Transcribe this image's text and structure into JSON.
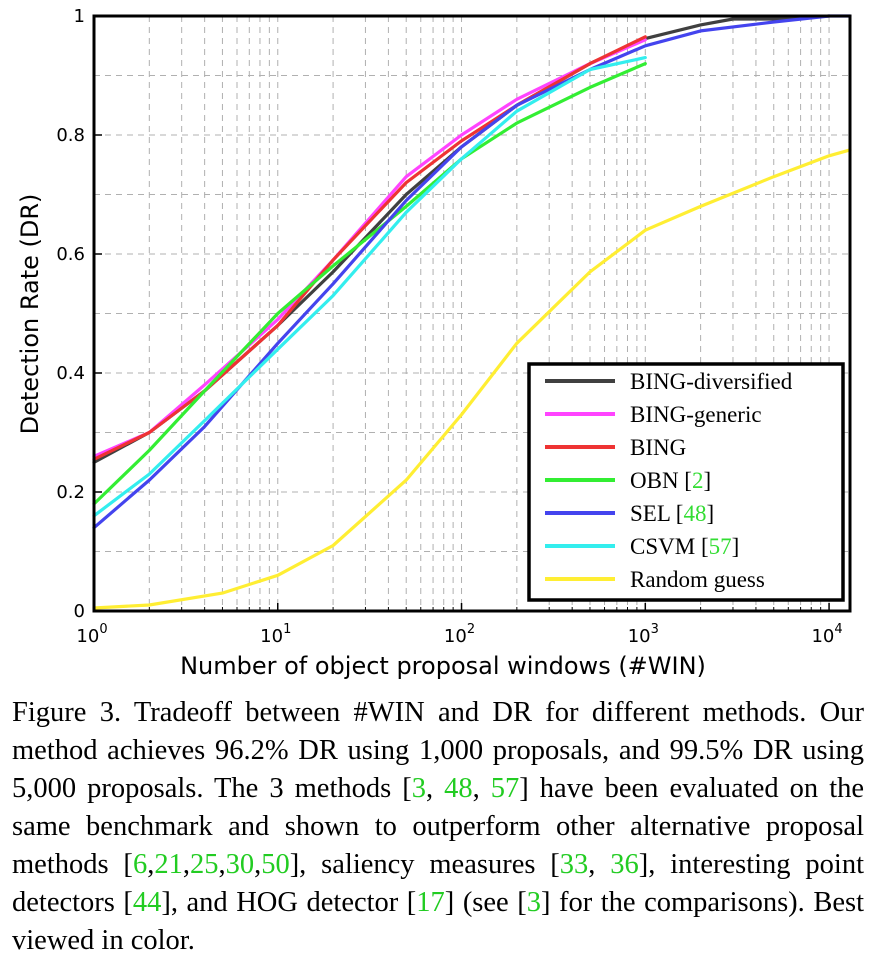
{
  "chart_data": {
    "type": "line",
    "title": "",
    "xlabel": "Number of object proposal windows (#WIN)",
    "ylabel": "Detection Rate (DR)",
    "xscale": "log",
    "xlim": [
      1,
      13000
    ],
    "ylim": [
      0,
      1
    ],
    "grid": true,
    "legend_position": "bottom-right",
    "x_tick_labels": [
      {
        "base": "10",
        "exp": "0"
      },
      {
        "base": "10",
        "exp": "1"
      },
      {
        "base": "10",
        "exp": "2"
      },
      {
        "base": "10",
        "exp": "3"
      },
      {
        "base": "10",
        "exp": "4"
      }
    ],
    "y_tick_labels": [
      "0",
      "0.2",
      "0.4",
      "0.6",
      "0.8",
      "1"
    ],
    "series": [
      {
        "name": "BING-diversified",
        "ref": "",
        "color": "#404040",
        "x": [
          1,
          2,
          4,
          10,
          20,
          50,
          100,
          200,
          500,
          1000,
          2000,
          3000,
          5000,
          10000
        ],
        "y": [
          0.25,
          0.3,
          0.37,
          0.48,
          0.57,
          0.7,
          0.78,
          0.85,
          0.92,
          0.962,
          0.985,
          0.995,
          0.995,
          1.0
        ]
      },
      {
        "name": "BING-generic",
        "ref": "",
        "color": "#ff44ff",
        "x": [
          1,
          2,
          4,
          10,
          20,
          50,
          100,
          200,
          500,
          1000
        ],
        "y": [
          0.26,
          0.3,
          0.38,
          0.49,
          0.59,
          0.73,
          0.8,
          0.86,
          0.92,
          0.96
        ]
      },
      {
        "name": "BING",
        "ref": "",
        "color": "#ee3333",
        "x": [
          1,
          2,
          4,
          10,
          20,
          50,
          100,
          200,
          500,
          1000
        ],
        "y": [
          0.255,
          0.3,
          0.37,
          0.48,
          0.59,
          0.72,
          0.79,
          0.85,
          0.92,
          0.965
        ]
      },
      {
        "name": "OBN",
        "ref": "2",
        "color": "#33ee33",
        "x": [
          1,
          2,
          4,
          10,
          20,
          50,
          100,
          200,
          500,
          1000
        ],
        "y": [
          0.18,
          0.27,
          0.37,
          0.5,
          0.58,
          0.68,
          0.76,
          0.82,
          0.88,
          0.92
        ]
      },
      {
        "name": "SEL",
        "ref": "48",
        "color": "#4444ee",
        "x": [
          1,
          2,
          4,
          10,
          20,
          50,
          100,
          200,
          500,
          1000,
          2000,
          5000,
          10000,
          13000
        ],
        "y": [
          0.14,
          0.22,
          0.31,
          0.45,
          0.55,
          0.69,
          0.78,
          0.85,
          0.91,
          0.95,
          0.975,
          0.99,
          1.0,
          1.0
        ]
      },
      {
        "name": "CSVM",
        "ref": "57",
        "color": "#33eeee",
        "x": [
          1,
          2,
          4,
          10,
          20,
          50,
          100,
          200,
          500,
          1000
        ],
        "y": [
          0.16,
          0.23,
          0.32,
          0.44,
          0.53,
          0.67,
          0.76,
          0.84,
          0.91,
          0.93
        ]
      },
      {
        "name": "Random guess",
        "ref": "",
        "color": "#ffee33",
        "x": [
          1,
          2,
          5,
          10,
          20,
          50,
          100,
          200,
          500,
          1000,
          2000,
          5000,
          10000,
          13000
        ],
        "y": [
          0.005,
          0.01,
          0.03,
          0.06,
          0.11,
          0.22,
          0.33,
          0.45,
          0.57,
          0.64,
          0.68,
          0.73,
          0.765,
          0.775
        ]
      }
    ]
  },
  "caption": {
    "parts": [
      {
        "t": "Figure 3. Tradeoff between #WIN and DR for different methods. Our method achieves 96.2% DR using 1,000 proposals, and 99.5% DR using 5,000 proposals. The 3 methods ["
      },
      {
        "t": "3",
        "ref": true
      },
      {
        "t": ", "
      },
      {
        "t": "48",
        "ref": true
      },
      {
        "t": ", "
      },
      {
        "t": "57",
        "ref": true
      },
      {
        "t": "] have been evaluated on the same benchmark and shown to outperform other alternative proposal methods ["
      },
      {
        "t": "6",
        "ref": true
      },
      {
        "t": ","
      },
      {
        "t": "21",
        "ref": true
      },
      {
        "t": ","
      },
      {
        "t": "25",
        "ref": true
      },
      {
        "t": ","
      },
      {
        "t": "30",
        "ref": true
      },
      {
        "t": ","
      },
      {
        "t": "50",
        "ref": true
      },
      {
        "t": "], saliency measures ["
      },
      {
        "t": "33",
        "ref": true
      },
      {
        "t": ", "
      },
      {
        "t": "36",
        "ref": true
      },
      {
        "t": "], interesting point detectors ["
      },
      {
        "t": "44",
        "ref": true
      },
      {
        "t": "], and HOG detector ["
      },
      {
        "t": "17",
        "ref": true
      },
      {
        "t": "] (see ["
      },
      {
        "t": "3",
        "ref": true
      },
      {
        "t": "] for the comparisons). Best viewed in color."
      }
    ]
  }
}
